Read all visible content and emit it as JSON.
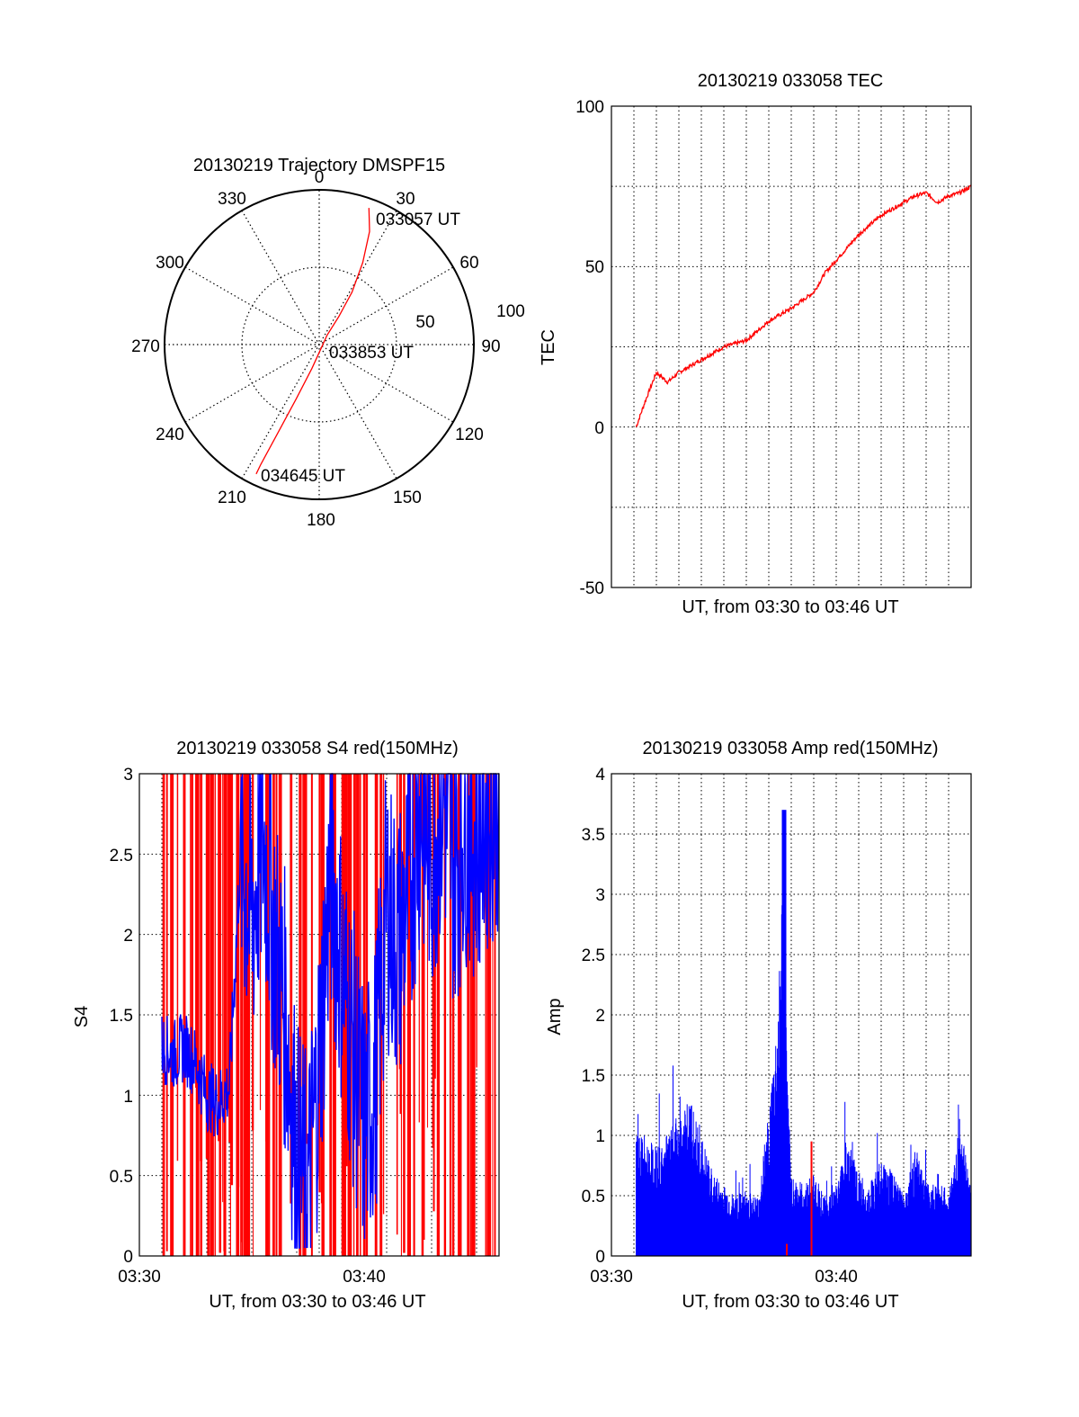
{
  "colors": {
    "red": "#ff0000",
    "blue": "#0000ff",
    "axis": "#000000",
    "grid": "#000000"
  },
  "chart_data": [
    {
      "type": "polar",
      "title": "20130219 Trajectory DMSPF15",
      "angle_labels": [
        "0",
        "30",
        "60",
        "90",
        "120",
        "150",
        "180",
        "210",
        "240",
        "270",
        "300",
        "330"
      ],
      "radial_labels": [
        "50",
        "100"
      ],
      "rlim": [
        0,
        100
      ],
      "grid": true,
      "annotations": [
        "033057 UT",
        "033853 UT",
        "034645 UT"
      ],
      "trajectory": {
        "color": "red",
        "points": [
          {
            "az": 20,
            "r": 94
          },
          {
            "az": 24,
            "r": 80
          },
          {
            "az": 28,
            "r": 60
          },
          {
            "az": 32,
            "r": 40
          },
          {
            "az": 35,
            "r": 22
          },
          {
            "az": 40,
            "r": 8
          },
          {
            "az": 160,
            "r": 3
          },
          {
            "az": 197,
            "r": 16
          },
          {
            "az": 203,
            "r": 38
          },
          {
            "az": 205,
            "r": 62
          },
          {
            "az": 206,
            "r": 86
          },
          {
            "az": 206,
            "r": 93
          }
        ]
      }
    },
    {
      "type": "line",
      "title": "20130219 033058 TEC",
      "xlabel": "UT, from 03:30 to 03:46 UT",
      "ylabel": "TEC",
      "xlim": [
        0,
        16
      ],
      "ylim": [
        -50,
        100
      ],
      "yticks": [
        "100",
        "50",
        "0",
        "-50"
      ],
      "grid": true,
      "series": [
        {
          "color": "red",
          "x": [
            1.1,
            1.5,
            2.0,
            2.5,
            3.0,
            3.5,
            4.0,
            5.0,
            6.0,
            7.0,
            8.0,
            9.0,
            9.5,
            10.0,
            10.5,
            11.0,
            12.0,
            13.0,
            13.5,
            14.0,
            14.5,
            15.0,
            15.5,
            16.0
          ],
          "y": [
            0,
            8,
            17,
            14,
            17,
            19,
            21,
            25,
            27,
            33,
            37,
            42,
            48,
            52,
            56,
            60,
            66,
            70,
            72,
            73,
            70,
            72,
            73,
            75
          ]
        }
      ]
    },
    {
      "type": "line",
      "title": "20130219 033058 S4 red(150MHz)",
      "xlabel": "UT, from 03:30 to 03:46 UT",
      "ylabel": "S4",
      "xlim": [
        0,
        16
      ],
      "ylim": [
        0,
        3
      ],
      "xticks": [
        "03:30",
        "03:40"
      ],
      "yticks": [
        "0",
        "0.5",
        "1",
        "1.5",
        "2",
        "2.5",
        "3"
      ],
      "grid": true,
      "series": [
        {
          "color": "blue",
          "x": [
            1.0,
            1.5,
            2.0,
            2.5,
            3.0,
            3.5,
            4.0,
            4.5,
            5.0,
            5.5,
            6.0,
            6.5,
            7.0,
            7.5,
            8.0,
            8.5,
            9.0,
            9.5,
            10.0,
            10.5,
            11.0,
            11.5,
            12.0,
            12.5,
            13.0,
            13.5,
            14.0,
            14.5,
            15.0,
            15.5,
            16.0
          ],
          "y": [
            1.3,
            1.25,
            1.3,
            1.2,
            1.0,
            0.95,
            1.05,
            2.5,
            2.1,
            2.6,
            2.0,
            1.5,
            0.6,
            0.4,
            1.2,
            2.4,
            1.8,
            1.3,
            0.8,
            1.1,
            2.2,
            1.9,
            2.3,
            2.8,
            2.5,
            2.9,
            2.4,
            2.7,
            2.6,
            2.8,
            2.9
          ]
        }
      ],
      "red_fill_density": "dense vertical red traces from 03:31 to 03:46, reaching the top of the axis"
    },
    {
      "type": "bar",
      "title": "20130219 033058 Amp red(150MHz)",
      "xlabel": "UT, from 03:30 to 03:46 UT",
      "ylabel": "Amp",
      "xlim": [
        0,
        16
      ],
      "ylim": [
        0,
        4
      ],
      "xticks": [
        "03:30",
        "03:40"
      ],
      "yticks": [
        "0",
        "0.5",
        "1",
        "1.5",
        "2",
        "2.5",
        "3",
        "3.5",
        "4"
      ],
      "grid": true,
      "series": [
        {
          "color": "blue",
          "x": [
            1.1,
            1.5,
            2.0,
            2.5,
            3.0,
            3.5,
            4.0,
            4.5,
            5.0,
            5.5,
            6.0,
            6.5,
            7.0,
            7.4,
            7.7,
            7.8,
            8.0,
            8.5,
            9.0,
            9.5,
            10.0,
            10.5,
            11.0,
            11.5,
            12.0,
            12.5,
            13.0,
            13.5,
            14.0,
            14.5,
            15.0,
            15.5,
            16.0
          ],
          "y": [
            1.1,
            1.0,
            0.9,
            1.0,
            1.2,
            1.3,
            1.0,
            0.7,
            0.6,
            0.5,
            0.55,
            0.5,
            1.2,
            2.1,
            3.7,
            1.6,
            0.7,
            0.6,
            0.7,
            0.5,
            0.6,
            1.0,
            0.7,
            0.6,
            0.8,
            0.7,
            0.5,
            0.9,
            0.6,
            0.7,
            0.5,
            1.1,
            0.6
          ]
        }
      ],
      "red_marks": [
        {
          "x": 7.8,
          "y": 0.1
        },
        {
          "x": 8.9,
          "y": 0.95
        }
      ]
    }
  ]
}
